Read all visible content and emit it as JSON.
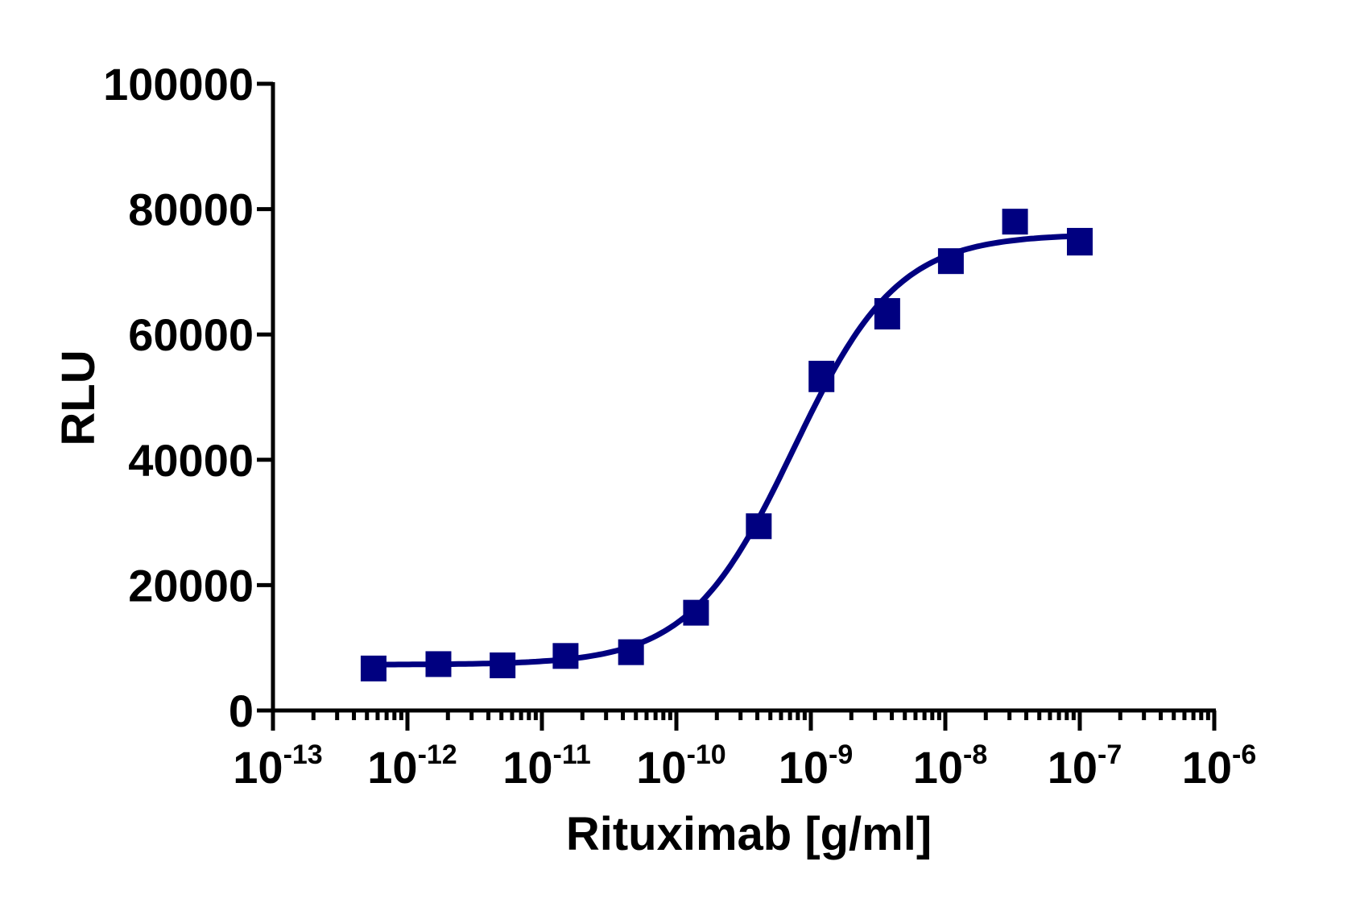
{
  "chart_data": {
    "type": "scatter",
    "title": "",
    "xlabel": "Rituximab [g/ml]",
    "ylabel": "RLU",
    "xscale": "log",
    "xlim": [
      1e-13,
      1e-06
    ],
    "ylim": [
      0,
      100000
    ],
    "x_tick_labels": [
      {
        "base": "10",
        "exp": "-13",
        "value": 1e-13
      },
      {
        "base": "10",
        "exp": "-12",
        "value": 1e-12
      },
      {
        "base": "10",
        "exp": "-11",
        "value": 1e-11
      },
      {
        "base": "10",
        "exp": "-10",
        "value": 1e-10
      },
      {
        "base": "10",
        "exp": "-9",
        "value": 1e-09
      },
      {
        "base": "10",
        "exp": "-8",
        "value": 1e-08
      },
      {
        "base": "10",
        "exp": "-7",
        "value": 1e-07
      },
      {
        "base": "10",
        "exp": "-6",
        "value": 1e-06
      }
    ],
    "y_ticks": [
      0,
      20000,
      40000,
      60000,
      80000,
      100000
    ],
    "y_tick_labels": [
      "0",
      "20000",
      "40000",
      "60000",
      "80000",
      "100000"
    ],
    "grid": false,
    "legend": null,
    "series": [
      {
        "name": "Rituximab",
        "marker": "square",
        "color": "#000080",
        "x": [
          5.6e-13,
          1.7e-12,
          5.1e-12,
          1.5e-11,
          4.6e-11,
          1.4e-10,
          4.1e-10,
          1.2e-09,
          3.7e-09,
          1.1e-08,
          3.3e-08,
          1e-07
        ],
        "y": [
          6700,
          7400,
          7200,
          8700,
          9300,
          15600,
          29400,
          53300,
          63300,
          71700,
          78000,
          74800
        ],
        "y_err": [
          0,
          0,
          0,
          0,
          0,
          0,
          0,
          2500,
          2500,
          0,
          1900,
          2200
        ]
      }
    ],
    "fit": {
      "model": "4PL",
      "bottom": 7300,
      "top": 76000,
      "log_ec50": -9.13,
      "hill": 1.12,
      "color": "#000080",
      "x_range": [
        5.6e-13,
        1e-07
      ]
    }
  }
}
